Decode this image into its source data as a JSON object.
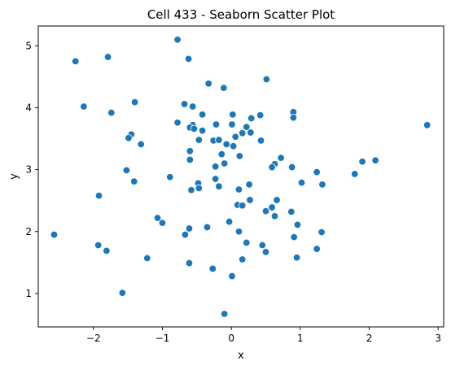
{
  "chart_data": {
    "type": "scatter",
    "title": "Cell 433 - Seaborn Scatter Plot",
    "xlabel": "x",
    "ylabel": "y",
    "xlim": [
      -2.8,
      3.08
    ],
    "ylim": [
      0.46,
      5.32
    ],
    "xticks": [
      -2,
      -1,
      0,
      1,
      2,
      3
    ],
    "yticks": [
      1,
      2,
      3,
      4,
      5
    ],
    "grid": false,
    "marker_color": "#1f77b4",
    "marker_edge": "#ffffff",
    "points": [
      {
        "x": -0.78,
        "y": 5.1
      },
      {
        "x": -0.62,
        "y": 4.79
      },
      {
        "x": -1.79,
        "y": 4.82
      },
      {
        "x": -2.26,
        "y": 4.75
      },
      {
        "x": 0.51,
        "y": 4.46
      },
      {
        "x": -0.33,
        "y": 4.39
      },
      {
        "x": -0.11,
        "y": 4.32
      },
      {
        "x": -1.4,
        "y": 4.09
      },
      {
        "x": -2.14,
        "y": 4.02
      },
      {
        "x": -0.68,
        "y": 4.06
      },
      {
        "x": -0.56,
        "y": 4.02
      },
      {
        "x": -1.74,
        "y": 3.92
      },
      {
        "x": 0.9,
        "y": 3.93
      },
      {
        "x": -0.42,
        "y": 3.89
      },
      {
        "x": 0.02,
        "y": 3.89
      },
      {
        "x": 0.42,
        "y": 3.88
      },
      {
        "x": 0.9,
        "y": 3.84
      },
      {
        "x": 0.29,
        "y": 3.83
      },
      {
        "x": -0.78,
        "y": 3.76
      },
      {
        "x": -0.22,
        "y": 3.73
      },
      {
        "x": -0.56,
        "y": 3.72
      },
      {
        "x": 0.01,
        "y": 3.73
      },
      {
        "x": 0.22,
        "y": 3.69
      },
      {
        "x": -0.6,
        "y": 3.68
      },
      {
        "x": -0.54,
        "y": 3.66
      },
      {
        "x": -0.42,
        "y": 3.63
      },
      {
        "x": 0.28,
        "y": 3.6
      },
      {
        "x": 0.16,
        "y": 3.59
      },
      {
        "x": -1.45,
        "y": 3.57
      },
      {
        "x": -1.49,
        "y": 3.51
      },
      {
        "x": 0.06,
        "y": 3.53
      },
      {
        "x": -0.47,
        "y": 3.48
      },
      {
        "x": -0.26,
        "y": 3.47
      },
      {
        "x": -0.18,
        "y": 3.48
      },
      {
        "x": 0.43,
        "y": 3.47
      },
      {
        "x": 2.84,
        "y": 3.72
      },
      {
        "x": -1.31,
        "y": 3.41
      },
      {
        "x": -0.07,
        "y": 3.41
      },
      {
        "x": 0.03,
        "y": 3.38
      },
      {
        "x": -0.6,
        "y": 3.3
      },
      {
        "x": -0.14,
        "y": 3.25
      },
      {
        "x": 0.12,
        "y": 3.22
      },
      {
        "x": 0.72,
        "y": 3.19
      },
      {
        "x": -0.6,
        "y": 3.16
      },
      {
        "x": 1.9,
        "y": 3.13
      },
      {
        "x": 2.09,
        "y": 3.15
      },
      {
        "x": -0.1,
        "y": 3.1
      },
      {
        "x": 0.63,
        "y": 3.09
      },
      {
        "x": -0.23,
        "y": 3.05
      },
      {
        "x": 0.59,
        "y": 3.04
      },
      {
        "x": 0.88,
        "y": 3.04
      },
      {
        "x": -1.52,
        "y": 2.99
      },
      {
        "x": 1.24,
        "y": 2.96
      },
      {
        "x": 1.79,
        "y": 2.93
      },
      {
        "x": -0.89,
        "y": 2.88
      },
      {
        "x": -0.23,
        "y": 2.85
      },
      {
        "x": -1.41,
        "y": 2.81
      },
      {
        "x": 1.02,
        "y": 2.79
      },
      {
        "x": -0.48,
        "y": 2.78
      },
      {
        "x": 0.26,
        "y": 2.76
      },
      {
        "x": 1.32,
        "y": 2.76
      },
      {
        "x": -0.18,
        "y": 2.73
      },
      {
        "x": -0.47,
        "y": 2.7
      },
      {
        "x": -0.58,
        "y": 2.67
      },
      {
        "x": 0.11,
        "y": 2.68
      },
      {
        "x": -1.92,
        "y": 2.58
      },
      {
        "x": 0.27,
        "y": 2.51
      },
      {
        "x": 0.66,
        "y": 2.51
      },
      {
        "x": 0.09,
        "y": 2.43
      },
      {
        "x": 0.16,
        "y": 2.42
      },
      {
        "x": 0.59,
        "y": 2.39
      },
      {
        "x": 0.5,
        "y": 2.33
      },
      {
        "x": 0.87,
        "y": 2.32
      },
      {
        "x": 0.63,
        "y": 2.25
      },
      {
        "x": -1.07,
        "y": 2.22
      },
      {
        "x": -0.03,
        "y": 2.16
      },
      {
        "x": -1.0,
        "y": 2.14
      },
      {
        "x": 0.96,
        "y": 2.11
      },
      {
        "x": -0.35,
        "y": 2.07
      },
      {
        "x": -0.61,
        "y": 2.05
      },
      {
        "x": 0.11,
        "y": 2.0
      },
      {
        "x": 1.31,
        "y": 1.99
      },
      {
        "x": -2.57,
        "y": 1.95
      },
      {
        "x": -0.67,
        "y": 1.95
      },
      {
        "x": 0.91,
        "y": 1.91
      },
      {
        "x": 0.22,
        "y": 1.82
      },
      {
        "x": -1.93,
        "y": 1.78
      },
      {
        "x": 0.45,
        "y": 1.78
      },
      {
        "x": 1.24,
        "y": 1.72
      },
      {
        "x": -1.81,
        "y": 1.69
      },
      {
        "x": 0.5,
        "y": 1.67
      },
      {
        "x": -1.22,
        "y": 1.57
      },
      {
        "x": 0.95,
        "y": 1.58
      },
      {
        "x": 0.16,
        "y": 1.55
      },
      {
        "x": -0.61,
        "y": 1.49
      },
      {
        "x": -0.27,
        "y": 1.4
      },
      {
        "x": 0.01,
        "y": 1.28
      },
      {
        "x": -1.58,
        "y": 1.01
      },
      {
        "x": -0.1,
        "y": 0.67
      }
    ]
  }
}
